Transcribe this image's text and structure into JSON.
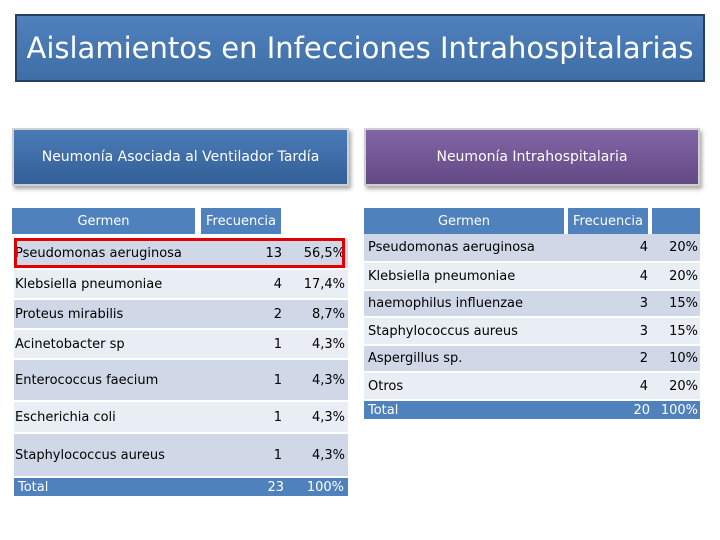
{
  "title": "Aislamientos en Infecciones Intrahospitalarias",
  "left_panel": {
    "heading": "Neumonía Asociada al Ventilador Tardía",
    "col_germen": "Germen",
    "col_frecuencia": "Frecuencia",
    "rows": [
      {
        "germen": "Pseudomonas aeruginosa",
        "n": "13",
        "pct": "56,5%"
      },
      {
        "germen": "Klebsiella pneumoniae",
        "n": "4",
        "pct": "17,4%"
      },
      {
        "germen": "Proteus mirabilis",
        "n": "2",
        "pct": "8,7%"
      },
      {
        "germen": "Acinetobacter sp",
        "n": "1",
        "pct": "4,3%"
      },
      {
        "germen": "Enterococcus faecium",
        "n": "1",
        "pct": "4,3%"
      },
      {
        "germen": "Escherichia coli",
        "n": "1",
        "pct": "4,3%"
      },
      {
        "germen": "Staphylococcus aureus",
        "n": "1",
        "pct": "4,3%"
      }
    ],
    "total": {
      "label": "Total",
      "n": "23",
      "pct": "100%"
    }
  },
  "right_panel": {
    "heading": "Neumonía Intrahospitalaria",
    "col_germen": "Germen",
    "col_frecuencia": "Frecuencia",
    "rows": [
      {
        "germen": "Pseudomonas aeruginosa",
        "n": "4",
        "pct": "20%"
      },
      {
        "germen": "Klebsiella pneumoniae",
        "n": "4",
        "pct": "20%"
      },
      {
        "germen": "haemophilus influenzae",
        "n": "3",
        "pct": "15%"
      },
      {
        "germen": "Staphylococcus aureus",
        "n": "3",
        "pct": "15%"
      },
      {
        "germen": "Aspergillus sp.",
        "n": "2",
        "pct": "10%"
      },
      {
        "germen": "Otros",
        "n": "4",
        "pct": "20%"
      }
    ],
    "total": {
      "label": "Total",
      "n": "20",
      "pct": "100%"
    }
  }
}
